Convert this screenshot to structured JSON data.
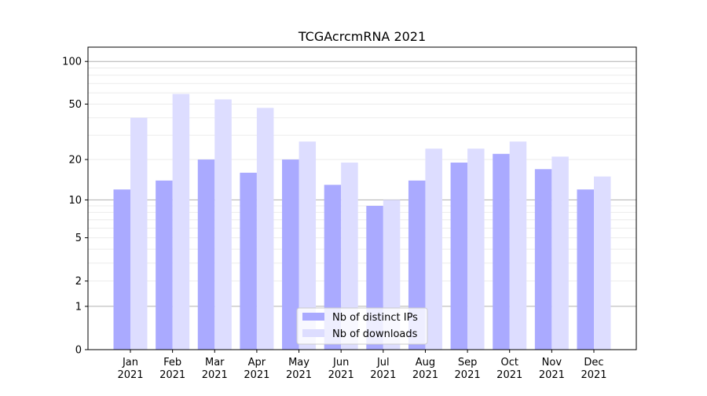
{
  "chart_data": {
    "type": "bar",
    "title": "TCGAcrcmRNA 2021",
    "xlabel": "",
    "ylabel": "",
    "yscale": "log10(1+y)",
    "ylim": [
      0,
      126
    ],
    "yticks": [
      0,
      1,
      2,
      5,
      10,
      20,
      50,
      100
    ],
    "ytick_labels": [
      "0",
      "1",
      "2",
      "5",
      "10",
      "20",
      "50",
      "100"
    ],
    "grid": true,
    "legend_position": "lower-center",
    "categories": [
      "Jan\n2021",
      "Feb\n2021",
      "Mar\n2021",
      "Apr\n2021",
      "May\n2021",
      "Jun\n2021",
      "Jul\n2021",
      "Aug\n2021",
      "Sep\n2021",
      "Oct\n2021",
      "Nov\n2021",
      "Dec\n2021"
    ],
    "category_months": [
      "Jan",
      "Feb",
      "Mar",
      "Apr",
      "May",
      "Jun",
      "Jul",
      "Aug",
      "Sep",
      "Oct",
      "Nov",
      "Dec"
    ],
    "category_year": "2021",
    "series": [
      {
        "name": "Nb of distinct IPs",
        "color": "#aaaaff",
        "values": [
          12,
          14,
          20,
          16,
          20,
          13,
          9,
          14,
          19,
          22,
          17,
          12
        ]
      },
      {
        "name": "Nb of downloads",
        "color": "#ddddff",
        "values": [
          40,
          59,
          54,
          47,
          27,
          19,
          10,
          24,
          24,
          27,
          21,
          15
        ]
      }
    ]
  }
}
